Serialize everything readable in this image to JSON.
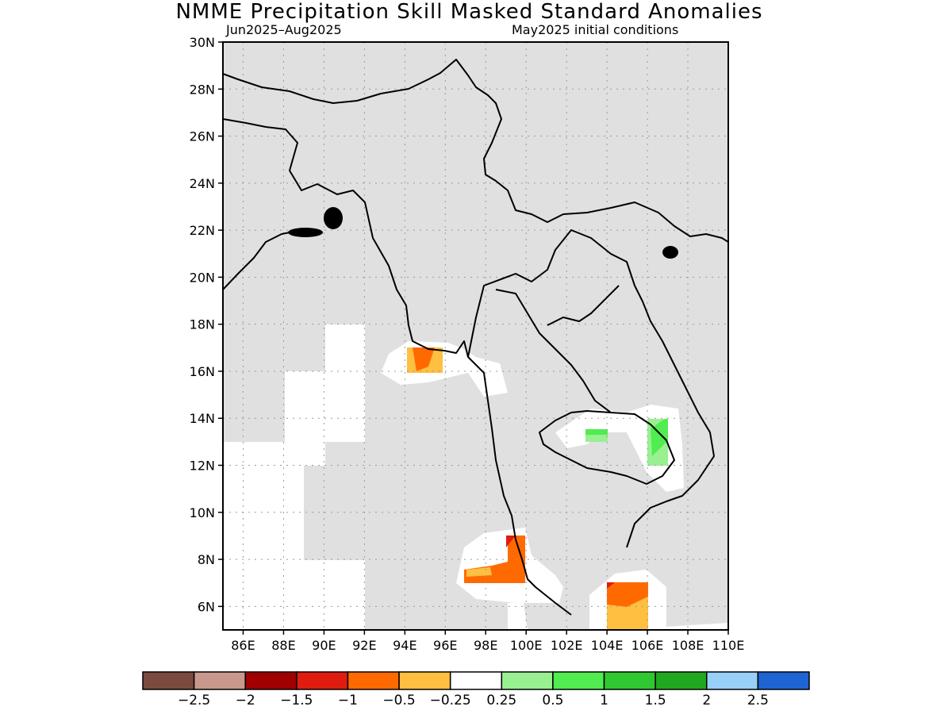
{
  "title": "NMME Precipitation Skill Masked Standard Anomalies",
  "subtitle_left": "Jun2025–Aug2025",
  "subtitle_right": "May2025 initial conditions",
  "map": {
    "lat_range": [
      5,
      30
    ],
    "lon_range": [
      85,
      110
    ],
    "lat_ticks": [
      "6N",
      "8N",
      "10N",
      "12N",
      "14N",
      "16N",
      "18N",
      "20N",
      "22N",
      "24N",
      "26N",
      "28N",
      "30N"
    ],
    "lon_ticks": [
      "86E",
      "88E",
      "90E",
      "92E",
      "94E",
      "96E",
      "98E",
      "100E",
      "102E",
      "104E",
      "106E",
      "108E",
      "110E"
    ],
    "masked_color": "#e0e0e0",
    "grid": "dotted"
  },
  "colorbar": {
    "colors": [
      "#7a4b3e",
      "#c8988c",
      "#a00000",
      "#e01c10",
      "#ff6a00",
      "#ffbf40",
      "#ffffff",
      "#98f090",
      "#50ec50",
      "#30c830",
      "#20a820",
      "#98d0f8",
      "#1e64d2"
    ],
    "labels": [
      "−2.5",
      "−2",
      "−1.5",
      "−1",
      "−0.5",
      "−0.25",
      "0.25",
      "0.5",
      "1",
      "1.5",
      "2",
      "2.5"
    ]
  }
}
